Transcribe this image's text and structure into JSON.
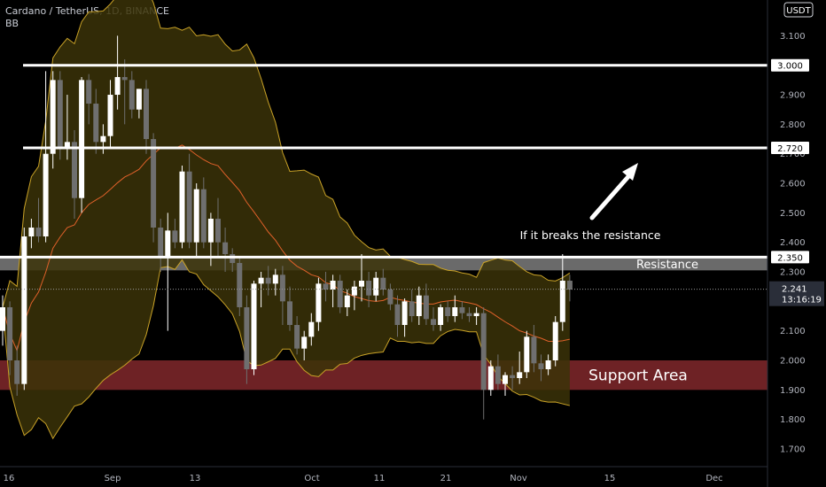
{
  "header": {
    "symbol": "Cardano / TetherUS, 1D, BINANCE",
    "indicator": "BB"
  },
  "currency_badge": "USDT",
  "chart_data": {
    "type": "candlestick",
    "ylim": [
      1.63,
      3.22
    ],
    "y_ticks": [
      "1.700",
      "1.800",
      "1.900",
      "2.000",
      "2.100",
      "2.200",
      "2.300",
      "2.400",
      "2.500",
      "2.600",
      "2.700",
      "2.800",
      "2.900",
      "3.000",
      "3.100"
    ],
    "x_ticks": [
      "16",
      "Sep",
      "13",
      "Oct",
      "11",
      "21",
      "Nov",
      "15",
      "Dec"
    ],
    "horizontal_levels": [
      {
        "label": "3.000",
        "value": 3.0
      },
      {
        "label": "2.720",
        "value": 2.72
      },
      {
        "label": "2.350",
        "value": 2.35
      }
    ],
    "last_price": {
      "label": "2.241",
      "value": 2.241,
      "countdown": "13:16:19"
    },
    "zones": [
      {
        "label": "Resistance",
        "from": 2.305,
        "to": 2.35,
        "color": "#8e8e8e"
      },
      {
        "label": "Support Area",
        "from": 1.9,
        "to": 2.0,
        "color": "#8a2a2e"
      }
    ],
    "annotation": "If it breaks the resistance",
    "colors": {
      "up": "#ffffff",
      "down": "#6f6f6f",
      "band_fill": "#3b3208",
      "band_line": "#c9a227",
      "basis": "#e0612a",
      "level_line": "#ffffff"
    },
    "candles": [
      [
        2.1,
        2.22,
        2.05,
        2.18
      ],
      [
        2.18,
        2.2,
        1.95,
        2.0
      ],
      [
        2.0,
        2.05,
        1.88,
        1.92
      ],
      [
        1.92,
        2.45,
        1.9,
        2.42
      ],
      [
        2.42,
        2.48,
        2.38,
        2.45
      ],
      [
        2.45,
        2.55,
        2.4,
        2.42
      ],
      [
        2.42,
        2.98,
        2.4,
        2.7
      ],
      [
        2.7,
        2.98,
        2.65,
        2.95
      ],
      [
        2.95,
        2.98,
        2.68,
        2.72
      ],
      [
        2.72,
        2.9,
        2.68,
        2.74
      ],
      [
        2.74,
        2.78,
        2.48,
        2.55
      ],
      [
        2.55,
        2.96,
        2.5,
        2.95
      ],
      [
        2.95,
        2.97,
        2.8,
        2.87
      ],
      [
        2.87,
        2.92,
        2.7,
        2.74
      ],
      [
        2.74,
        2.8,
        2.7,
        2.76
      ],
      [
        2.76,
        2.95,
        2.72,
        2.9
      ],
      [
        2.9,
        3.1,
        2.85,
        2.96
      ],
      [
        2.96,
        3.02,
        2.8,
        2.95
      ],
      [
        2.95,
        2.98,
        2.82,
        2.85
      ],
      [
        2.85,
        2.92,
        2.82,
        2.92
      ],
      [
        2.92,
        2.95,
        2.7,
        2.75
      ],
      [
        2.75,
        2.77,
        2.4,
        2.45
      ],
      [
        2.45,
        2.48,
        2.3,
        2.35
      ],
      [
        2.35,
        2.5,
        2.1,
        2.44
      ],
      [
        2.44,
        2.48,
        2.38,
        2.4
      ],
      [
        2.4,
        2.66,
        2.38,
        2.64
      ],
      [
        2.64,
        2.7,
        2.38,
        2.4
      ],
      [
        2.4,
        2.6,
        2.35,
        2.58
      ],
      [
        2.58,
        2.62,
        2.38,
        2.4
      ],
      [
        2.4,
        2.5,
        2.32,
        2.48
      ],
      [
        2.48,
        2.55,
        2.35,
        2.4
      ],
      [
        2.4,
        2.45,
        2.3,
        2.36
      ],
      [
        2.36,
        2.38,
        2.3,
        2.33
      ],
      [
        2.33,
        2.35,
        2.15,
        2.18
      ],
      [
        2.18,
        2.22,
        1.92,
        1.97
      ],
      [
        1.97,
        2.27,
        1.95,
        2.26
      ],
      [
        2.26,
        2.3,
        2.18,
        2.28
      ],
      [
        2.28,
        2.32,
        2.22,
        2.26
      ],
      [
        2.26,
        2.31,
        2.22,
        2.29
      ],
      [
        2.29,
        2.32,
        2.12,
        2.2
      ],
      [
        2.2,
        2.25,
        2.1,
        2.12
      ],
      [
        2.12,
        2.15,
        2.02,
        2.04
      ],
      [
        2.04,
        2.1,
        2.0,
        2.08
      ],
      [
        2.08,
        2.16,
        2.05,
        2.13
      ],
      [
        2.13,
        2.28,
        2.1,
        2.26
      ],
      [
        2.26,
        2.3,
        2.2,
        2.24
      ],
      [
        2.24,
        2.29,
        2.18,
        2.27
      ],
      [
        2.27,
        2.29,
        2.16,
        2.18
      ],
      [
        2.18,
        2.24,
        2.15,
        2.22
      ],
      [
        2.22,
        2.27,
        2.17,
        2.25
      ],
      [
        2.25,
        2.36,
        2.2,
        2.27
      ],
      [
        2.27,
        2.3,
        2.18,
        2.22
      ],
      [
        2.22,
        2.3,
        2.2,
        2.28
      ],
      [
        2.28,
        2.31,
        2.22,
        2.24
      ],
      [
        2.24,
        2.26,
        2.17,
        2.19
      ],
      [
        2.19,
        2.22,
        2.08,
        2.12
      ],
      [
        2.12,
        2.21,
        2.08,
        2.2
      ],
      [
        2.2,
        2.24,
        2.13,
        2.15
      ],
      [
        2.15,
        2.25,
        2.12,
        2.22
      ],
      [
        2.22,
        2.26,
        2.12,
        2.14
      ],
      [
        2.14,
        2.18,
        2.1,
        2.12
      ],
      [
        2.12,
        2.19,
        2.1,
        2.18
      ],
      [
        2.18,
        2.2,
        2.13,
        2.15
      ],
      [
        2.15,
        2.22,
        2.13,
        2.18
      ],
      [
        2.18,
        2.2,
        2.14,
        2.16
      ],
      [
        2.16,
        2.18,
        2.13,
        2.15
      ],
      [
        2.15,
        2.18,
        2.12,
        2.16
      ],
      [
        2.16,
        2.18,
        1.8,
        1.9
      ],
      [
        1.9,
        2.0,
        1.88,
        1.98
      ],
      [
        1.98,
        2.02,
        1.9,
        1.92
      ],
      [
        1.92,
        1.96,
        1.88,
        1.95
      ],
      [
        1.95,
        1.98,
        1.9,
        1.94
      ],
      [
        1.94,
        2.03,
        1.92,
        1.96
      ],
      [
        1.96,
        2.1,
        1.94,
        2.08
      ],
      [
        2.08,
        2.12,
        1.96,
        1.99
      ],
      [
        1.99,
        2.02,
        1.93,
        1.97
      ],
      [
        1.97,
        2.02,
        1.95,
        2.0
      ],
      [
        2.0,
        2.15,
        1.98,
        2.13
      ],
      [
        2.13,
        2.36,
        2.1,
        2.27
      ],
      [
        2.27,
        2.29,
        2.2,
        2.24
      ]
    ]
  }
}
